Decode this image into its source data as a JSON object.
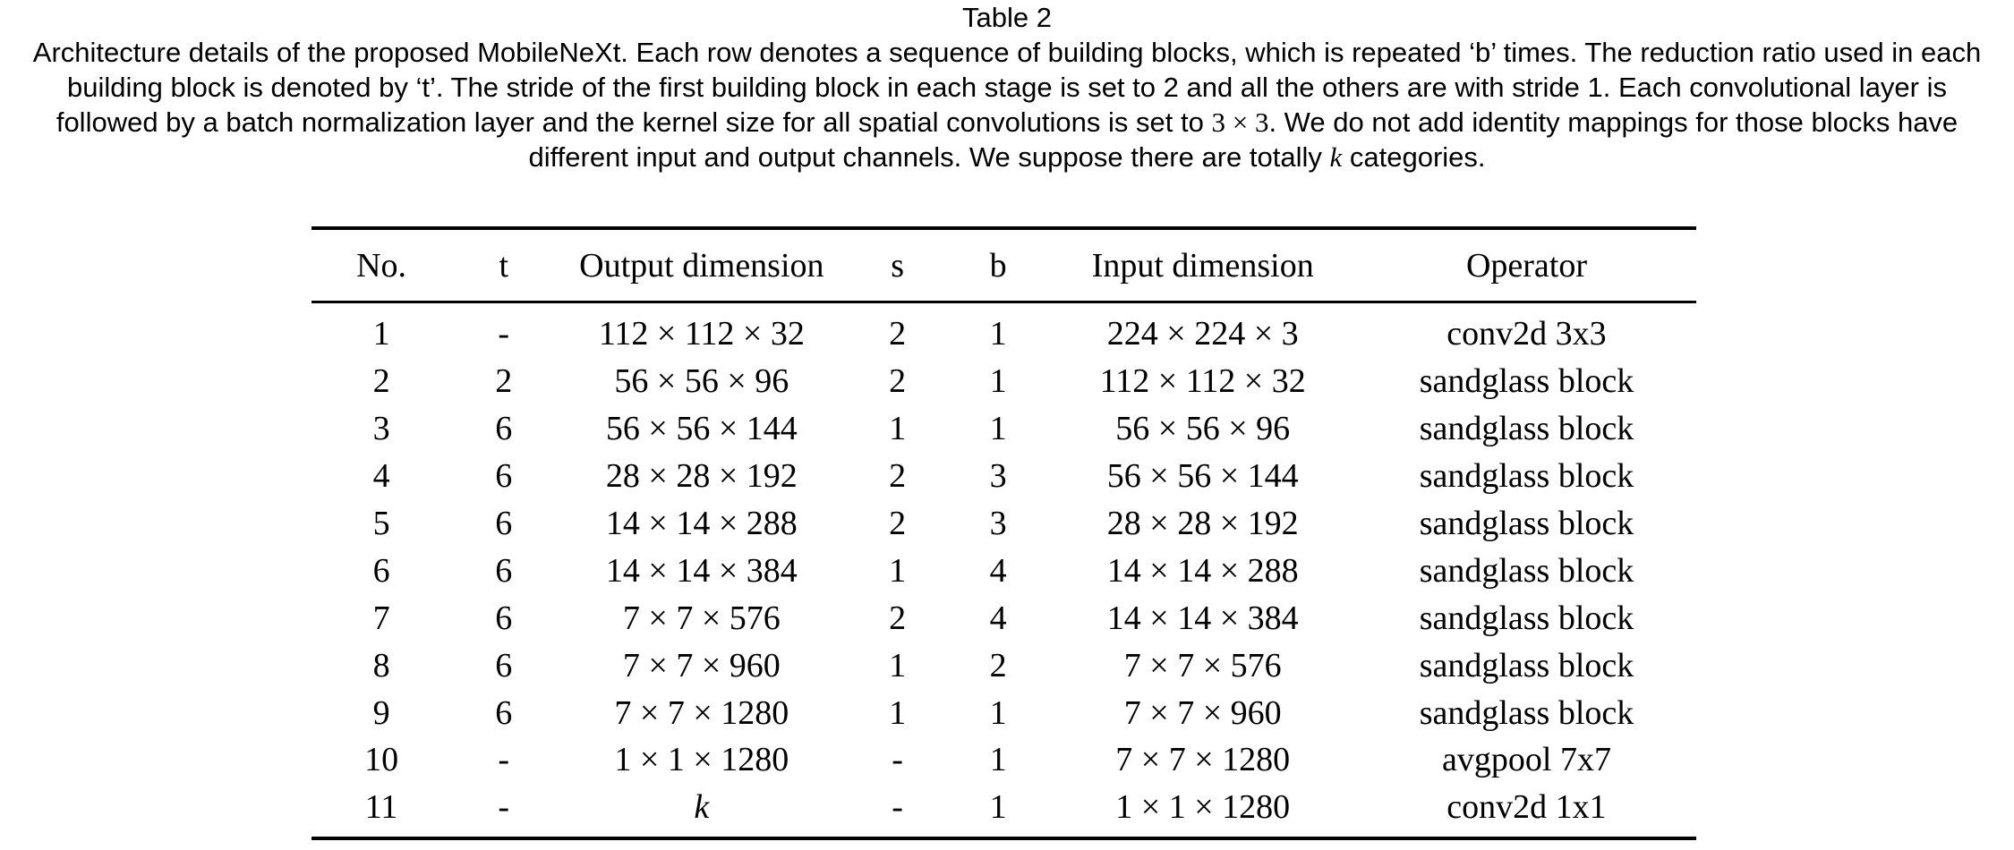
{
  "caption": {
    "title": "Table  2",
    "body_part1": "Architecture details of the proposed MobileNeXt. Each row denotes a sequence of building blocks, which is repeated ‘b’ times. The reduction ratio used in each building block is denoted by ‘t’. The stride of the first building block in each stage is set to 2 and all the others are with stride 1. Each convolutional layer is followed by a batch normalization layer and the kernel size for all spatial convolutions is set to ",
    "body_math1": "3 × 3",
    "body_part2": ". We do not add identity mappings for those blocks have different input and output channels. We suppose there are totally ",
    "body_math2": "k",
    "body_part3": " categories."
  },
  "table": {
    "headers": [
      "No.",
      "t",
      "Output dimension",
      "s",
      "b",
      "Input dimension",
      "Operator"
    ],
    "rows": [
      [
        "1",
        "-",
        "112 × 112 × 32",
        "2",
        "1",
        "224 × 224 × 3",
        "conv2d 3x3"
      ],
      [
        "2",
        "2",
        "56 × 56 × 96",
        "2",
        "1",
        "112 × 112 × 32",
        "sandglass block"
      ],
      [
        "3",
        "6",
        "56 × 56 × 144",
        "1",
        "1",
        "56 × 56 × 96",
        "sandglass block"
      ],
      [
        "4",
        "6",
        "28 × 28 × 192",
        "2",
        "3",
        "56 × 56 × 144",
        "sandglass block"
      ],
      [
        "5",
        "6",
        "14 × 14 × 288",
        "2",
        "3",
        "28 × 28 × 192",
        "sandglass block"
      ],
      [
        "6",
        "6",
        "14 × 14 × 384",
        "1",
        "4",
        "14 × 14 × 288",
        "sandglass block"
      ],
      [
        "7",
        "6",
        "7 × 7 × 576",
        "2",
        "4",
        "14 × 14 × 384",
        "sandglass block"
      ],
      [
        "8",
        "6",
        "7 × 7 × 960",
        "1",
        "2",
        "7 × 7 × 576",
        "sandglass block"
      ],
      [
        "9",
        "6",
        "7 × 7 × 1280",
        "1",
        "1",
        "7 × 7 × 960",
        "sandglass block"
      ],
      [
        "10",
        "-",
        "1 × 1 × 1280",
        "-",
        "1",
        "7 × 7 × 1280",
        "avgpool 7x7"
      ],
      [
        "11",
        "-",
        "k",
        "-",
        "1",
        "1 × 1 × 1280",
        "conv2d 1x1"
      ]
    ]
  }
}
